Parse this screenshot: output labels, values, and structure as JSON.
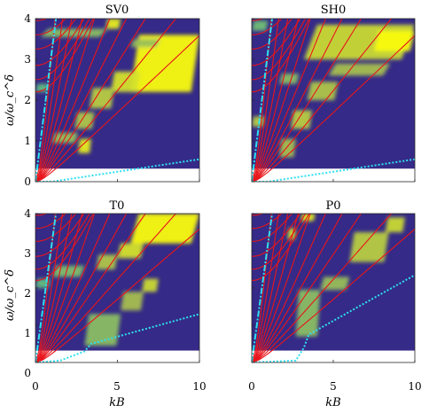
{
  "colors": {
    "background": "#352a87",
    "cutoff_region": "#ffffff",
    "dispersion_curves": "#e8151b",
    "light_lines": "#2ee0f0",
    "highlight_low": "#12bdb9",
    "highlight_mid": "#a5be4f",
    "highlight_high": "#f9fb0e"
  },
  "chart_data": [
    {
      "type": "heatmap",
      "title": "SV0",
      "xlabel": "",
      "ylabel": "ω/ω_c^δ",
      "xlim": [
        0,
        10
      ],
      "ylim": [
        0,
        4
      ],
      "xticks": [
        "",
        ""
      ],
      "yticks": [
        "0",
        "1",
        "2",
        "3",
        "4"
      ],
      "cutoff_frequency": 0.32,
      "light_lines": [
        {
          "style": "dash-dot",
          "x": [
            0,
            1.25
          ],
          "y": [
            0,
            4
          ]
        },
        {
          "style": "dotted",
          "x": [
            0,
            1,
            10
          ],
          "y": [
            0,
            0,
            0.55
          ]
        }
      ],
      "dispersion_slopes": [
        0.38,
        0.5,
        0.65,
        0.8,
        1.0,
        1.3,
        1.7,
        2.3,
        3.3,
        5.0
      ],
      "dispersion_offsets": [
        2.2,
        2.5,
        2.85,
        3.25,
        3.6,
        3.95
      ],
      "highlights": [
        {
          "x0": 5.8,
          "x1": 10.0,
          "y0": 2.2,
          "y1": 3.6,
          "intensity": 1.0
        },
        {
          "x0": 4.6,
          "x1": 6.4,
          "y0": 2.2,
          "y1": 2.7,
          "intensity": 0.8
        },
        {
          "x0": 3.3,
          "x1": 4.8,
          "y0": 1.8,
          "y1": 2.3,
          "intensity": 0.65
        },
        {
          "x0": 2.4,
          "x1": 3.6,
          "y0": 1.3,
          "y1": 1.7,
          "intensity": 0.6
        },
        {
          "x0": 1.0,
          "x1": 2.6,
          "y0": 0.95,
          "y1": 1.2,
          "intensity": 0.5
        },
        {
          "x0": 2.6,
          "x1": 3.4,
          "y0": 0.7,
          "y1": 1.05,
          "intensity": 0.9
        },
        {
          "x0": 0.3,
          "x1": 4.4,
          "y0": 3.55,
          "y1": 3.75,
          "intensity": 0.45
        },
        {
          "x0": 4.3,
          "x1": 5.2,
          "y0": 3.75,
          "y1": 4.0,
          "intensity": 0.9
        },
        {
          "x0": 5.8,
          "x1": 7.6,
          "y0": 3.3,
          "y1": 3.5,
          "intensity": 0.5
        },
        {
          "x0": 0.0,
          "x1": 0.8,
          "y0": 2.2,
          "y1": 2.4,
          "intensity": 0.3
        }
      ]
    },
    {
      "type": "heatmap",
      "title": "SH0",
      "xlabel": "",
      "ylabel": "",
      "xlim": [
        0,
        10
      ],
      "ylim": [
        0,
        4
      ],
      "xticks": [
        "",
        ""
      ],
      "yticks": [
        "",
        "",
        "",
        "",
        ""
      ],
      "cutoff_frequency": 0.32,
      "light_lines": [
        {
          "style": "dash-dot",
          "x": [
            0,
            1.25
          ],
          "y": [
            0,
            4
          ]
        },
        {
          "style": "dotted",
          "x": [
            0,
            1,
            10
          ],
          "y": [
            0,
            0,
            0.55
          ]
        }
      ],
      "dispersion_slopes": [
        0.38,
        0.5,
        0.65,
        0.8,
        1.0,
        1.3,
        1.7,
        2.3,
        3.3,
        5.0
      ],
      "dispersion_offsets": [
        2.2,
        2.5,
        2.85,
        3.25,
        3.6,
        3.95
      ],
      "highlights": [
        {
          "x0": 3.2,
          "x1": 10.0,
          "y0": 3.0,
          "y1": 3.85,
          "intensity": 0.75
        },
        {
          "x0": 7.5,
          "x1": 10.0,
          "y0": 3.2,
          "y1": 3.7,
          "intensity": 1.0
        },
        {
          "x0": 4.7,
          "x1": 8.5,
          "y0": 2.6,
          "y1": 2.9,
          "intensity": 0.55
        },
        {
          "x0": 3.4,
          "x1": 5.3,
          "y0": 2.0,
          "y1": 2.45,
          "intensity": 0.6
        },
        {
          "x0": 2.4,
          "x1": 3.7,
          "y0": 1.3,
          "y1": 1.75,
          "intensity": 0.65
        },
        {
          "x0": 1.7,
          "x1": 2.7,
          "y0": 0.6,
          "y1": 1.05,
          "intensity": 0.55
        },
        {
          "x0": 0.0,
          "x1": 0.8,
          "y0": 1.35,
          "y1": 1.6,
          "intensity": 0.65
        },
        {
          "x0": 1.7,
          "x1": 2.9,
          "y0": 2.4,
          "y1": 2.65,
          "intensity": 0.45
        },
        {
          "x0": 0.0,
          "x1": 1.0,
          "y0": 3.7,
          "y1": 3.95,
          "intensity": 0.35
        }
      ]
    },
    {
      "type": "heatmap",
      "title": "T0",
      "xlabel": "kB",
      "ylabel": "ω/ω_c^δ",
      "xlim": [
        0,
        10
      ],
      "ylim": [
        0,
        4
      ],
      "xticks": [
        "0",
        "5",
        "10"
      ],
      "yticks": [
        "0",
        "1",
        "2",
        "3",
        "4"
      ],
      "cutoff_frequency": 0.32,
      "light_lines": [
        {
          "style": "dash-dot",
          "x": [
            0,
            1.25
          ],
          "y": [
            0,
            4
          ]
        },
        {
          "style": "dotted",
          "x": [
            0,
            1.5,
            3.0,
            3.4,
            10
          ],
          "y": [
            0,
            0.05,
            0.3,
            0.5,
            1.3
          ]
        }
      ],
      "dispersion_slopes": [
        0.38,
        0.5,
        0.65,
        0.8,
        1.0,
        1.3,
        1.7,
        2.3,
        3.3,
        5.0
      ],
      "dispersion_offsets": [
        2.2,
        2.5,
        2.85,
        3.25,
        3.6,
        3.95
      ],
      "highlights": [
        {
          "x0": 5.8,
          "x1": 10.0,
          "y0": 3.2,
          "y1": 4.0,
          "intensity": 1.0
        },
        {
          "x0": 5.0,
          "x1": 6.6,
          "y0": 2.8,
          "y1": 3.2,
          "intensity": 0.8
        },
        {
          "x0": 3.7,
          "x1": 5.0,
          "y0": 2.5,
          "y1": 2.9,
          "intensity": 0.6
        },
        {
          "x0": 6.5,
          "x1": 7.5,
          "y0": 1.9,
          "y1": 2.25,
          "intensity": 0.75
        },
        {
          "x0": 5.2,
          "x1": 6.6,
          "y0": 1.4,
          "y1": 1.9,
          "intensity": 0.55
        },
        {
          "x0": 3.0,
          "x1": 5.2,
          "y0": 0.45,
          "y1": 1.3,
          "intensity": 0.45
        },
        {
          "x0": 1.0,
          "x1": 3.0,
          "y0": 2.3,
          "y1": 2.6,
          "intensity": 0.4
        },
        {
          "x0": 0.0,
          "x1": 0.9,
          "y0": 2.0,
          "y1": 2.25,
          "intensity": 0.3
        }
      ]
    },
    {
      "type": "heatmap",
      "title": "P0",
      "xlabel": "kB",
      "ylabel": "",
      "xlim": [
        0,
        10
      ],
      "ylim": [
        0,
        4
      ],
      "xticks": [
        "0",
        "5",
        "10"
      ],
      "yticks": [
        "",
        "",
        "",
        "",
        ""
      ],
      "cutoff_frequency": 0.32,
      "light_lines": [
        {
          "style": "dash-dot",
          "x": [
            0,
            1.25
          ],
          "y": [
            0,
            4
          ]
        },
        {
          "style": "dotted",
          "x": [
            0,
            2.7,
            3.2,
            3.5,
            10
          ],
          "y": [
            0,
            0.05,
            0.4,
            0.75,
            2.35
          ]
        }
      ],
      "dispersion_slopes": [
        0.38,
        0.5,
        0.65,
        0.8,
        1.0,
        1.3,
        1.7,
        2.3,
        3.3,
        5.0
      ],
      "dispersion_offsets": [
        2.2,
        2.5,
        2.85,
        3.25,
        3.6,
        3.95
      ],
      "highlights": [
        {
          "x0": 8.2,
          "x1": 9.4,
          "y0": 3.5,
          "y1": 3.9,
          "intensity": 0.75
        },
        {
          "x0": 6.0,
          "x1": 8.4,
          "y0": 2.7,
          "y1": 3.5,
          "intensity": 0.65
        },
        {
          "x0": 4.2,
          "x1": 6.0,
          "y0": 1.95,
          "y1": 2.3,
          "intensity": 0.5
        },
        {
          "x0": 2.7,
          "x1": 4.2,
          "y0": 0.7,
          "y1": 1.95,
          "intensity": 0.45
        },
        {
          "x0": 2.2,
          "x1": 2.7,
          "y0": 3.3,
          "y1": 3.6,
          "intensity": 0.8
        },
        {
          "x0": 3.0,
          "x1": 3.9,
          "y0": 3.8,
          "y1": 4.0,
          "intensity": 0.9
        }
      ]
    }
  ]
}
